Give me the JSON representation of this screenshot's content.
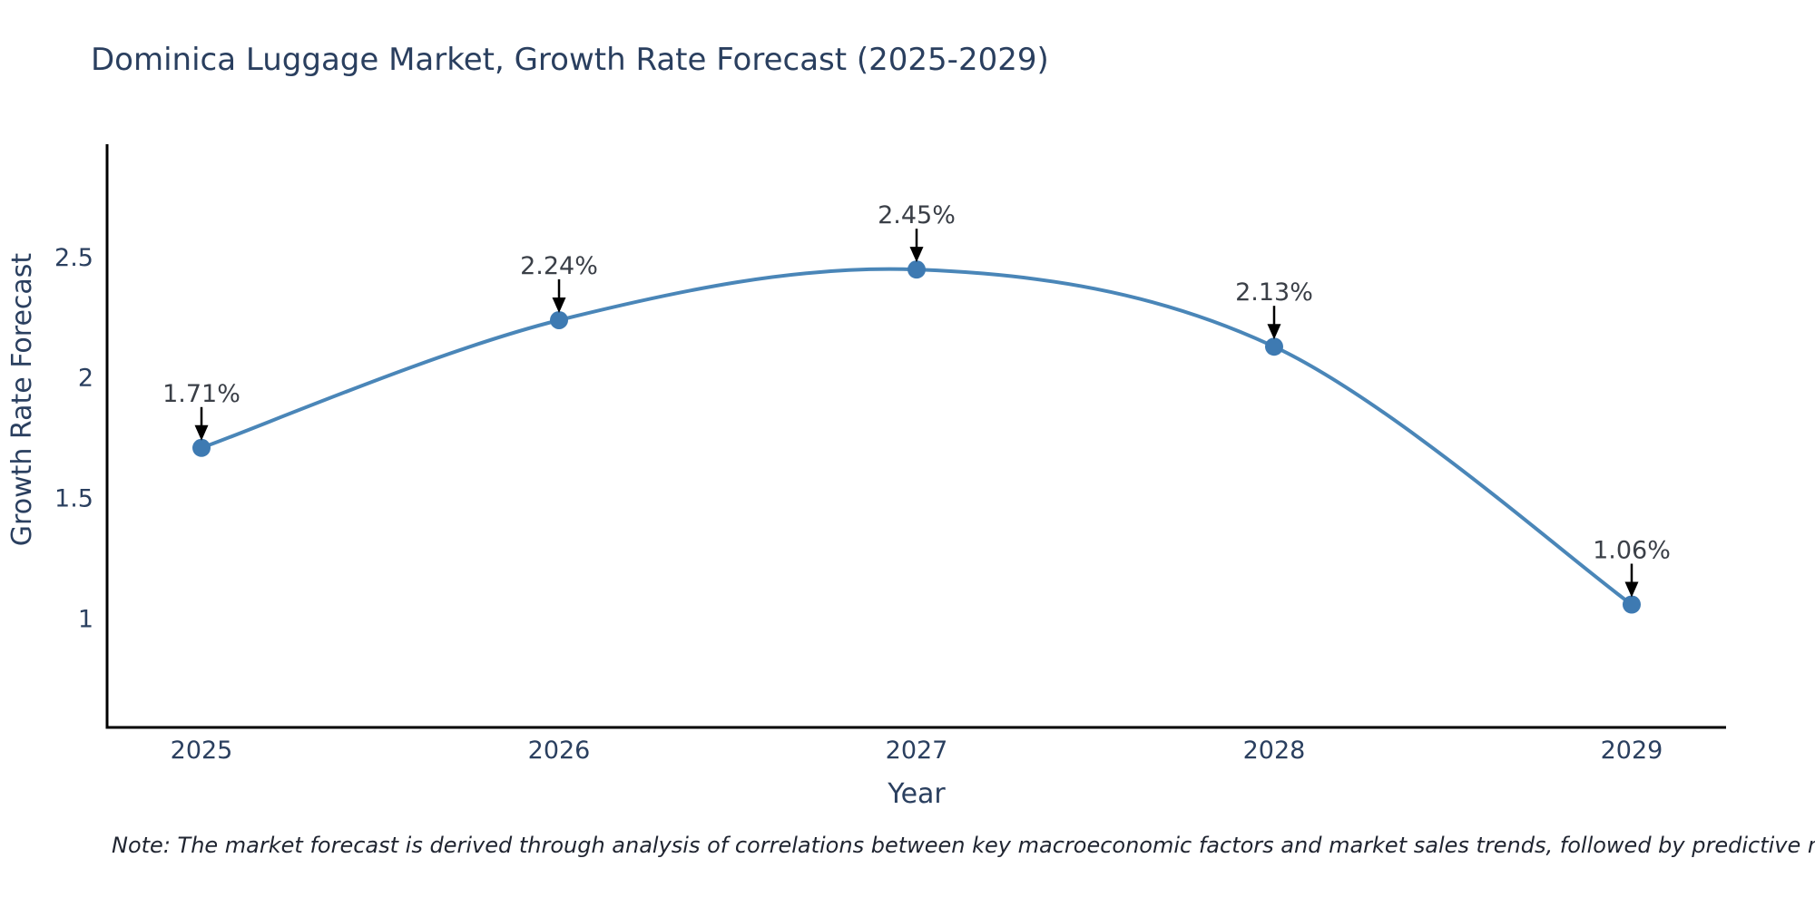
{
  "title": "Dominica Luggage Market, Growth Rate Forecast (2025-2029)",
  "note": "Note: The market forecast is derived through analysis of correlations between key macroeconomic factors and market sales trends, followed by predictive modeling to project future sales",
  "colors": {
    "title_text": "#2a3f5f",
    "axis_text": "#2a3f5f",
    "annotation_text": "#3a3f47",
    "axis_line": "#000000",
    "arrow": "#000000",
    "line": "#4a86b8",
    "marker": "#3e7ab2",
    "background": "#ffffff"
  },
  "chart_data": {
    "type": "line",
    "line_shape": "spline",
    "x": [
      2025,
      2026,
      2027,
      2028,
      2029
    ],
    "values": [
      1.71,
      2.24,
      2.45,
      2.13,
      1.06
    ],
    "point_labels": [
      "1.71%",
      "2.24%",
      "2.45%",
      "2.13%",
      "1.06%"
    ],
    "title": "Dominica Luggage Market, Growth Rate Forecast (2025-2029)",
    "xlabel": "Year",
    "ylabel": "Growth Rate Forecast",
    "xticks": [
      "2025",
      "2026",
      "2027",
      "2028",
      "2029"
    ],
    "xtick_values": [
      2025,
      2026,
      2027,
      2028,
      2029
    ],
    "yticks": [
      "1",
      "1.5",
      "2",
      "2.5"
    ],
    "ytick_values": [
      1,
      1.5,
      2,
      2.5
    ],
    "xlim": [
      2024.736,
      2029.264
    ],
    "ylim": [
      0.55,
      2.97
    ],
    "grid": false,
    "legend": false,
    "marker_size": 20,
    "line_width": 4
  }
}
